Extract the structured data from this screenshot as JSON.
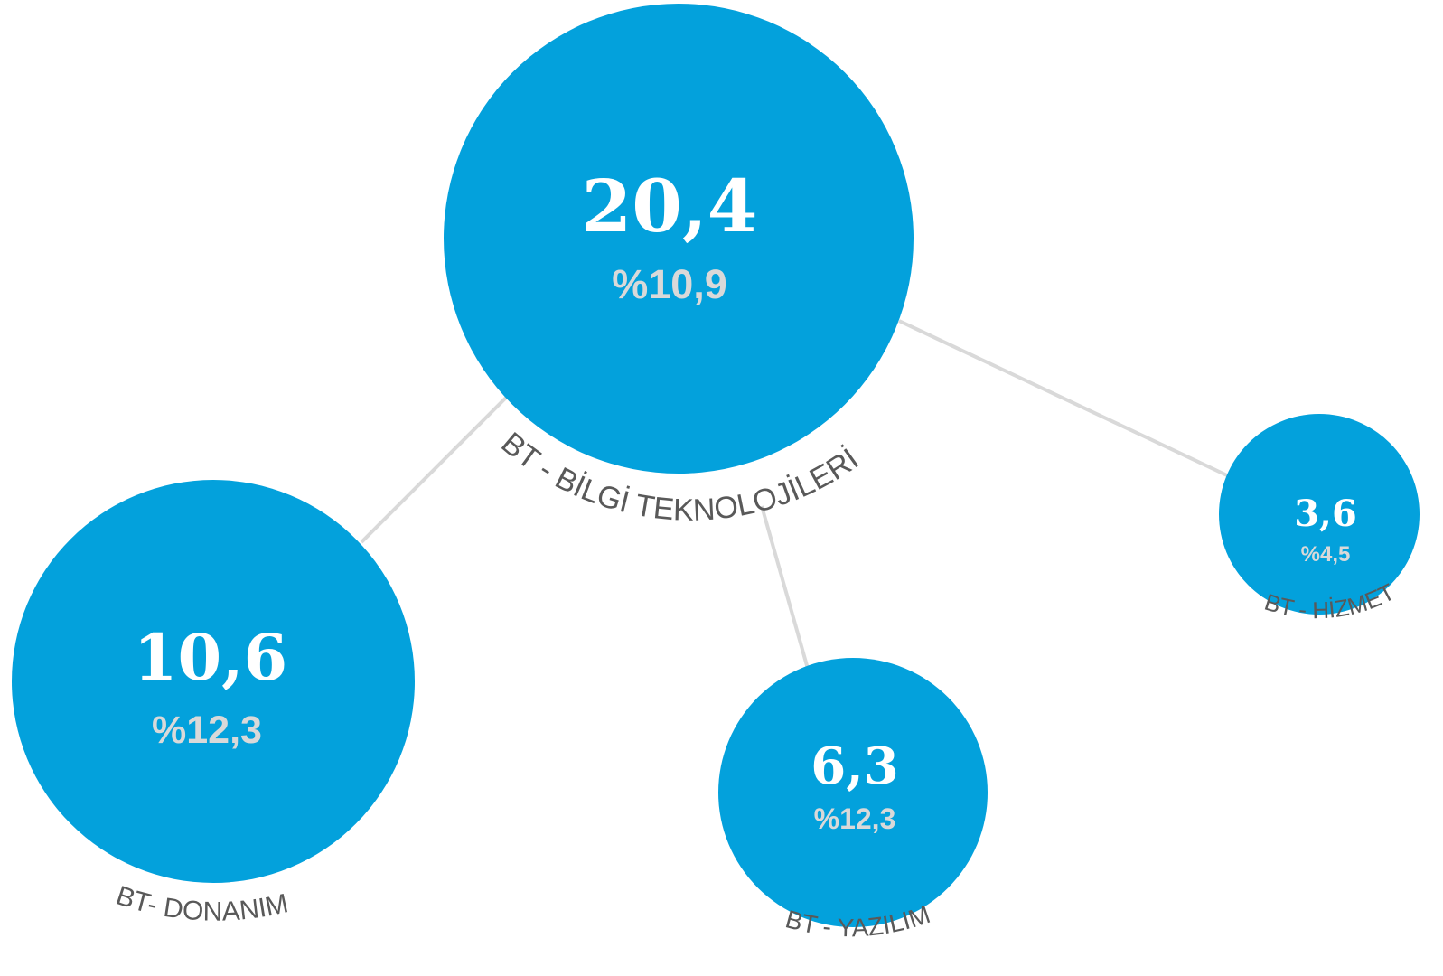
{
  "colors": {
    "bubble": "#03a1dc",
    "connector": "#d9d9d9",
    "value_text": "#ffffff",
    "growth_text": "#d9d9d9",
    "label_text": "#595959"
  },
  "nodes": {
    "main": {
      "value": "20,4",
      "growth": "%10,9",
      "label": "BT - BİLGİ TEKNOLOJİLERİ"
    },
    "hardware": {
      "value": "10,6",
      "growth": "%12,3",
      "label": "BT- DONANIM"
    },
    "software": {
      "value": "6,3",
      "growth": "%12,3",
      "label": "BT - YAZILIM"
    },
    "service": {
      "value": "3,6",
      "growth": "%4,5",
      "label": "BT - HİZMET"
    }
  }
}
